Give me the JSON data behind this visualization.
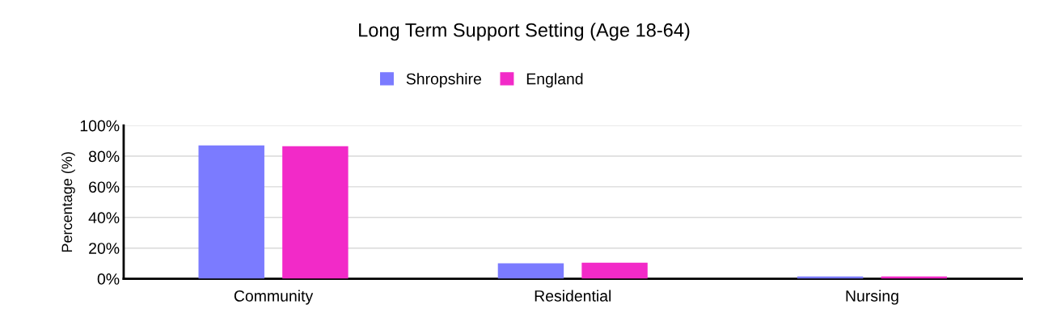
{
  "chart_data": {
    "type": "bar",
    "title": "Long Term Support Setting (Age 18-64)",
    "ylabel": "Percentage (%)",
    "categories": [
      "Community",
      "Residential",
      "Nursing"
    ],
    "series": [
      {
        "name": "Shropshire",
        "color": "#7b7bff",
        "values": [
          87,
          10,
          1.5
        ]
      },
      {
        "name": "England",
        "color": "#f22ac8",
        "values": [
          86.5,
          10.5,
          1.5
        ]
      }
    ],
    "ylim": [
      0,
      100
    ],
    "yticks": [
      {
        "value": 0,
        "label": "0%"
      },
      {
        "value": 20,
        "label": "20%"
      },
      {
        "value": 40,
        "label": "40%"
      },
      {
        "value": 60,
        "label": "60%"
      },
      {
        "value": 80,
        "label": "80%"
      },
      {
        "value": 100,
        "label": "100%"
      }
    ],
    "grid": "y",
    "legend": "top"
  }
}
